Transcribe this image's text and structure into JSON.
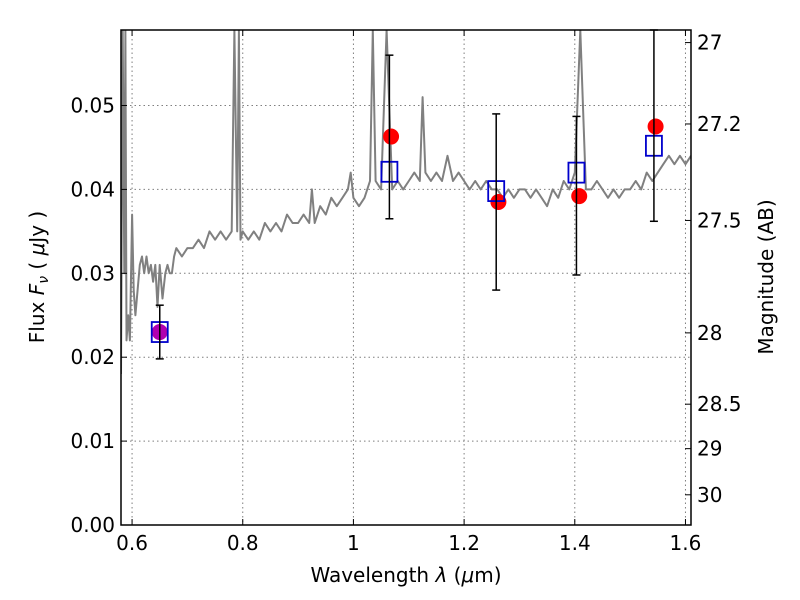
{
  "chart_data": {
    "type": "scatter",
    "xlabel_pre": "Wavelength  ",
    "xlabel_sym": "λ",
    "xlabel_post": " (",
    "xlabel_mu": "μ",
    "xlabel_unit": "m)",
    "ylabel_pre": "Flux  ",
    "ylabel_F": "F",
    "ylabel_sub": "ν",
    "ylabel_post": "  (  ",
    "ylabel_mu": "μ",
    "ylabel_unit": "Jy )",
    "y2label": "Magnitude (AB)",
    "xlim": [
      0.58,
      1.61
    ],
    "ylim": [
      0.0,
      0.059
    ],
    "grid": true,
    "x_ticks": [
      0.6,
      0.8,
      1.0,
      1.2,
      1.4,
      1.6
    ],
    "x_tick_labels": [
      "0.6",
      "0.8",
      "1",
      "1.2",
      "1.4",
      "1.6"
    ],
    "y_ticks": [
      0.0,
      0.01,
      0.02,
      0.03,
      0.04,
      0.05
    ],
    "y_tick_labels": [
      "0.00",
      "0.01",
      "0.02",
      "0.03",
      "0.04",
      "0.05"
    ],
    "y2_ticks": [
      {
        "label": "27",
        "flux": 0.0575
      },
      {
        "label": "27.2",
        "flux": 0.0478
      },
      {
        "label": "27.5",
        "flux": 0.0363
      },
      {
        "label": "28",
        "flux": 0.0229
      },
      {
        "label": "28.5",
        "flux": 0.0144
      },
      {
        "label": "29",
        "flux": 0.0091
      },
      {
        "label": "30",
        "flux": 0.0036
      }
    ],
    "series": [
      {
        "type": "line",
        "color": "#808080",
        "x": [
          0.58,
          0.583,
          0.586,
          0.588,
          0.59,
          0.593,
          0.596,
          0.6,
          0.603,
          0.606,
          0.61,
          0.614,
          0.618,
          0.622,
          0.626,
          0.63,
          0.634,
          0.638,
          0.642,
          0.646,
          0.65,
          0.655,
          0.66,
          0.664,
          0.668,
          0.672,
          0.676,
          0.68,
          0.69,
          0.7,
          0.71,
          0.72,
          0.73,
          0.74,
          0.75,
          0.76,
          0.77,
          0.78,
          0.785,
          0.79,
          0.793,
          0.796,
          0.8,
          0.81,
          0.82,
          0.83,
          0.84,
          0.85,
          0.86,
          0.87,
          0.88,
          0.89,
          0.9,
          0.91,
          0.92,
          0.925,
          0.93,
          0.94,
          0.95,
          0.96,
          0.97,
          0.98,
          0.99,
          0.995,
          1.0,
          1.01,
          1.02,
          1.03,
          1.035,
          1.04,
          1.05,
          1.06,
          1.07,
          1.08,
          1.09,
          1.1,
          1.11,
          1.12,
          1.125,
          1.13,
          1.14,
          1.15,
          1.16,
          1.17,
          1.18,
          1.19,
          1.2,
          1.21,
          1.22,
          1.23,
          1.24,
          1.25,
          1.26,
          1.27,
          1.28,
          1.29,
          1.3,
          1.31,
          1.32,
          1.33,
          1.34,
          1.35,
          1.36,
          1.37,
          1.38,
          1.39,
          1.4,
          1.41,
          1.42,
          1.43,
          1.44,
          1.45,
          1.46,
          1.47,
          1.48,
          1.49,
          1.5,
          1.51,
          1.52,
          1.53,
          1.54,
          1.55,
          1.56,
          1.57,
          1.58,
          1.59,
          1.6,
          1.61
        ],
        "y": [
          0.018,
          0.059,
          0.03,
          0.059,
          0.022,
          0.025,
          0.022,
          0.037,
          0.028,
          0.025,
          0.028,
          0.031,
          0.032,
          0.03,
          0.032,
          0.03,
          0.031,
          0.029,
          0.031,
          0.026,
          0.031,
          0.027,
          0.03,
          0.031,
          0.03,
          0.03,
          0.032,
          0.033,
          0.032,
          0.033,
          0.033,
          0.034,
          0.033,
          0.035,
          0.034,
          0.035,
          0.034,
          0.035,
          0.059,
          0.035,
          0.059,
          0.034,
          0.035,
          0.034,
          0.035,
          0.034,
          0.036,
          0.035,
          0.036,
          0.035,
          0.037,
          0.036,
          0.036,
          0.037,
          0.036,
          0.04,
          0.036,
          0.038,
          0.037,
          0.039,
          0.038,
          0.039,
          0.04,
          0.042,
          0.039,
          0.038,
          0.039,
          0.041,
          0.059,
          0.041,
          0.04,
          0.059,
          0.04,
          0.041,
          0.04,
          0.041,
          0.042,
          0.041,
          0.051,
          0.042,
          0.041,
          0.042,
          0.041,
          0.044,
          0.041,
          0.042,
          0.041,
          0.04,
          0.041,
          0.04,
          0.041,
          0.04,
          0.04,
          0.039,
          0.04,
          0.039,
          0.04,
          0.04,
          0.039,
          0.04,
          0.039,
          0.038,
          0.04,
          0.039,
          0.041,
          0.04,
          0.042,
          0.059,
          0.04,
          0.04,
          0.041,
          0.04,
          0.039,
          0.04,
          0.039,
          0.04,
          0.04,
          0.041,
          0.04,
          0.042,
          0.041,
          0.042,
          0.043,
          0.044,
          0.043,
          0.044,
          0.043,
          0.044
        ]
      },
      {
        "type": "points",
        "marker": "circle",
        "color": "#ff0000",
        "x": [
          0.65,
          1.068,
          1.262,
          1.408,
          1.546
        ],
        "y": [
          0.023,
          0.0463,
          0.0385,
          0.0392,
          0.0475
        ],
        "colors": [
          "#b000b0",
          "#ff0000",
          "#ff0000",
          "#ff0000",
          "#ff0000"
        ]
      },
      {
        "type": "points",
        "marker": "open-square",
        "color": "#0000cc",
        "x": [
          0.65,
          1.065,
          1.258,
          1.403,
          1.543
        ],
        "y": [
          0.023,
          0.0421,
          0.0398,
          0.042,
          0.0452
        ]
      },
      {
        "type": "errorbars",
        "color": "#000000",
        "x": [
          0.65,
          1.065,
          1.258,
          1.403,
          1.543
        ],
        "y_low": [
          0.0198,
          0.0365,
          0.028,
          0.0298,
          0.0362
        ],
        "y_high": [
          0.0262,
          0.056,
          0.049,
          0.0487,
          0.059
        ]
      }
    ]
  }
}
